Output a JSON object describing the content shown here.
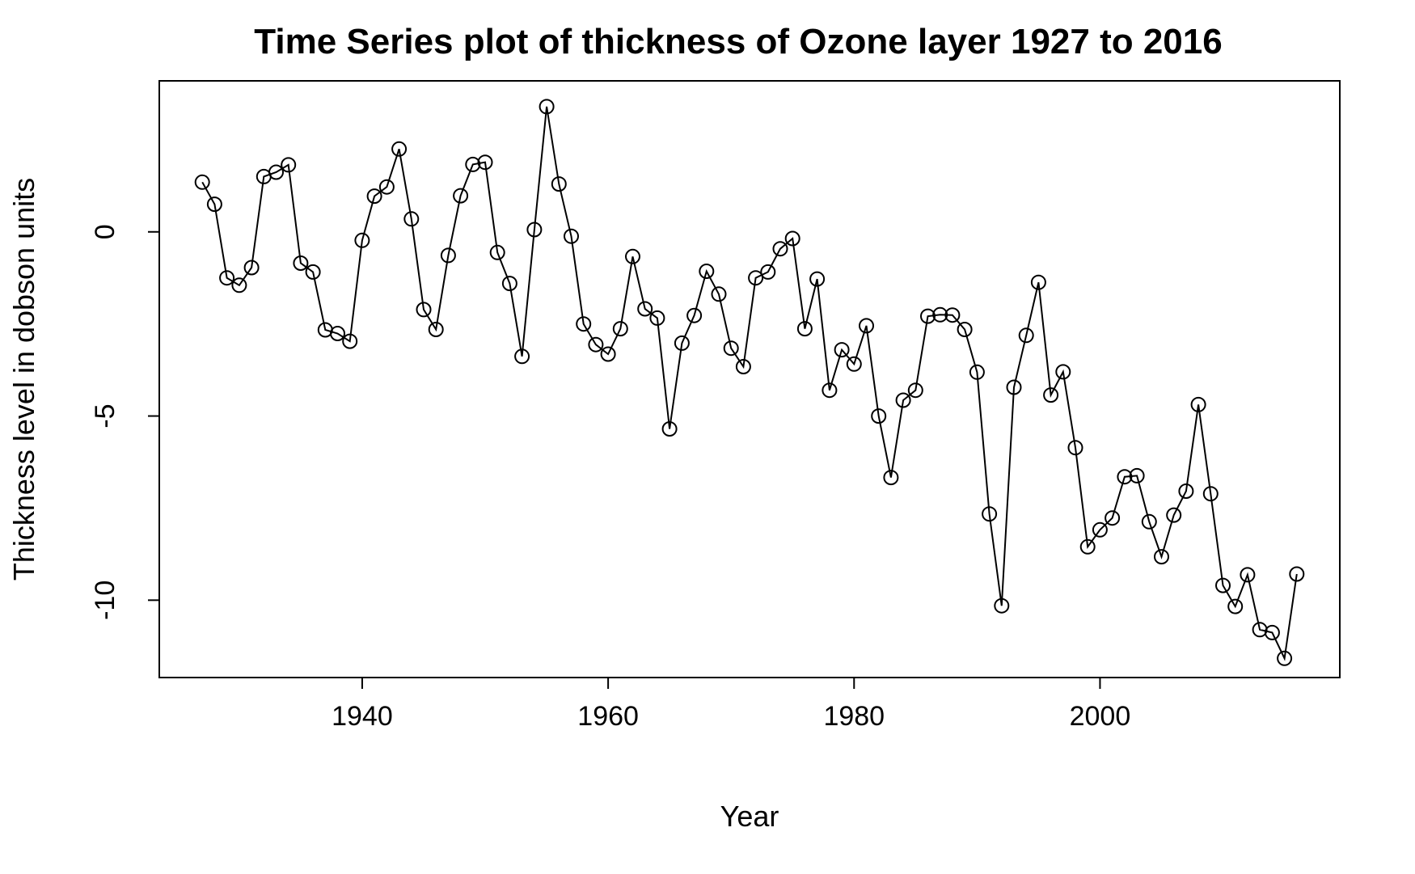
{
  "chart_data": {
    "type": "line",
    "title": "Time Series plot of thickness of Ozone layer 1927 to 2016",
    "xlabel": "Year",
    "ylabel": "Thickness level in dobson units",
    "xlim": [
      1923.5,
      2019.5
    ],
    "ylim": [
      -12.1,
      4.1
    ],
    "xticks": [
      1940,
      1960,
      1980,
      2000
    ],
    "yticks": [
      0,
      -5,
      -10
    ],
    "grid": false,
    "markers": "open-circle",
    "x": [
      1927,
      1928,
      1929,
      1930,
      1931,
      1932,
      1933,
      1934,
      1935,
      1936,
      1937,
      1938,
      1939,
      1940,
      1941,
      1942,
      1943,
      1944,
      1945,
      1946,
      1947,
      1948,
      1949,
      1950,
      1951,
      1952,
      1953,
      1954,
      1955,
      1956,
      1957,
      1958,
      1959,
      1960,
      1961,
      1962,
      1963,
      1964,
      1965,
      1966,
      1967,
      1968,
      1969,
      1970,
      1971,
      1972,
      1973,
      1974,
      1975,
      1976,
      1977,
      1978,
      1979,
      1980,
      1981,
      1982,
      1983,
      1984,
      1985,
      1986,
      1987,
      1988,
      1989,
      1990,
      1991,
      1992,
      1993,
      1994,
      1995,
      1996,
      1997,
      1998,
      1999,
      2000,
      2001,
      2002,
      2003,
      2004,
      2005,
      2006,
      2007,
      2008,
      2009,
      2010,
      2011,
      2012,
      2013,
      2014,
      2015,
      2016
    ],
    "y": [
      1.35,
      0.75,
      -1.25,
      -1.45,
      -0.97,
      1.5,
      1.62,
      1.82,
      -0.85,
      -1.09,
      -2.66,
      -2.76,
      -2.97,
      -0.23,
      0.97,
      1.22,
      2.25,
      0.35,
      -2.11,
      -2.65,
      -0.64,
      0.98,
      1.83,
      1.89,
      -0.56,
      -1.4,
      -3.38,
      0.06,
      3.4,
      1.3,
      -0.12,
      -2.5,
      -3.06,
      -3.32,
      -2.63,
      -0.67,
      -2.09,
      -2.34,
      -5.35,
      -3.02,
      -2.27,
      -1.07,
      -1.69,
      -3.16,
      -3.66,
      -1.25,
      -1.09,
      -0.46,
      -0.18,
      -2.63,
      -1.28,
      -4.3,
      -3.2,
      -3.59,
      -2.55,
      -5.0,
      -6.67,
      -4.57,
      -4.3,
      -2.29,
      -2.25,
      -2.26,
      -2.65,
      -3.81,
      -7.66,
      -10.15,
      -4.22,
      -2.81,
      -1.37,
      -4.43,
      -3.8,
      -5.86,
      -8.55,
      -8.09,
      -7.77,
      -6.65,
      -6.62,
      -7.87,
      -8.82,
      -7.69,
      -7.04,
      -4.69,
      -7.11,
      -9.6,
      -10.17,
      -9.31,
      -10.8,
      -10.88,
      -11.58,
      -9.29
    ]
  }
}
